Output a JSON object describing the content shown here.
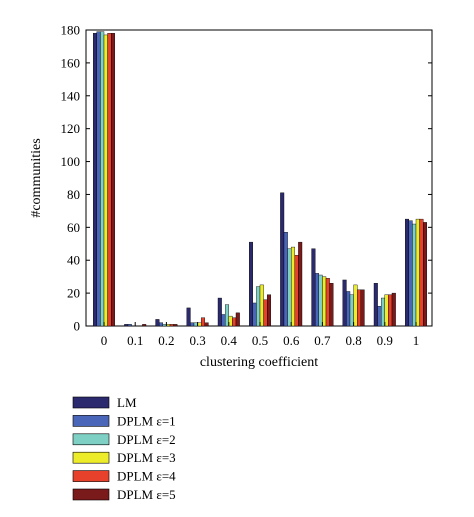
{
  "chart_data": {
    "type": "bar",
    "categories": [
      "0",
      "0.1",
      "0.2",
      "0.3",
      "0.4",
      "0.5",
      "0.6",
      "0.7",
      "0.8",
      "0.9",
      "1"
    ],
    "xlabel": "clustering coefficient",
    "ylabel": "#communities",
    "ylim": [
      0,
      180
    ],
    "yticks": [
      "0",
      "20",
      "40",
      "60",
      "80",
      "100",
      "120",
      "140",
      "160",
      "180"
    ],
    "grid": false,
    "legend_placement": "below",
    "series": [
      {
        "name": "LM",
        "color": "#2b2a6e",
        "values": [
          178,
          1,
          4,
          11,
          17,
          51,
          81,
          47,
          28,
          26,
          65
        ]
      },
      {
        "name": "DPLM ε=1",
        "color": "#4a66b8",
        "values": [
          179,
          1,
          2,
          2,
          7,
          14,
          57,
          32,
          21,
          12,
          64
        ]
      },
      {
        "name": "DPLM ε=2",
        "color": "#7fd0c4",
        "values": [
          179,
          0,
          1,
          2,
          13,
          24,
          47,
          31,
          19,
          17,
          62
        ]
      },
      {
        "name": "DPLM ε=3",
        "color": "#ecec2a",
        "values": [
          177,
          0,
          1,
          2,
          6,
          25,
          48,
          30,
          25,
          19,
          65
        ]
      },
      {
        "name": "DPLM ε=4",
        "color": "#e8412b",
        "values": [
          178,
          0,
          1,
          5,
          5,
          16,
          43,
          29,
          22,
          19,
          65
        ]
      },
      {
        "name": "DPLM ε=5",
        "color": "#7a1a1a",
        "values": [
          178,
          1,
          1,
          2,
          8,
          19,
          51,
          26,
          22,
          20,
          63
        ]
      }
    ]
  }
}
